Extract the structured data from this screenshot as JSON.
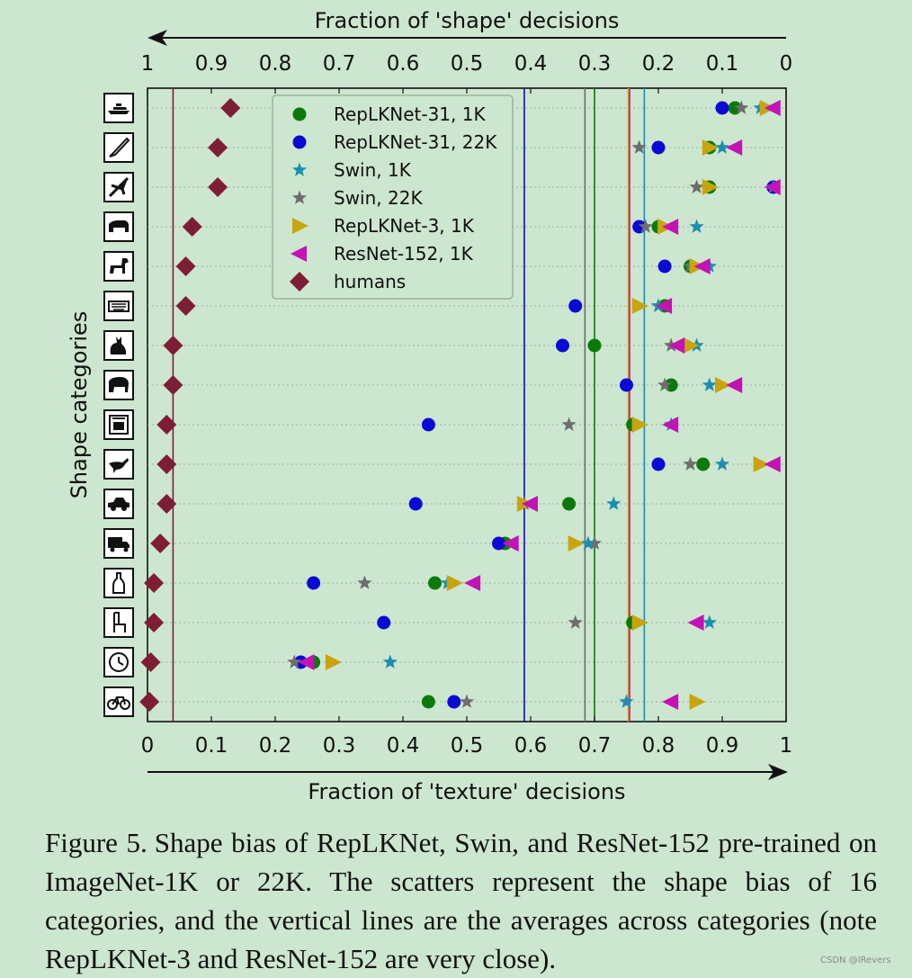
{
  "chart_data": {
    "type": "scatter",
    "top_axis": {
      "label": "Fraction of 'shape' decisions",
      "ticks": [
        "1",
        "0.9",
        "0.8",
        "0.7",
        "0.6",
        "0.5",
        "0.4",
        "0.3",
        "0.2",
        "0.1",
        "0"
      ]
    },
    "bottom_axis": {
      "label": "Fraction of 'texture' decisions",
      "ticks": [
        "0",
        "0.1",
        "0.2",
        "0.3",
        "0.4",
        "0.5",
        "0.6",
        "0.7",
        "0.8",
        "0.9",
        "1"
      ]
    },
    "xlim": [
      0,
      1
    ],
    "ylabel": "Shape categories",
    "categories": [
      "knife",
      "keyboard",
      "airplane",
      "bear",
      "dog",
      "oven",
      "cat",
      "elephant",
      "truck",
      "bird",
      "car",
      "bottle",
      "chair",
      "clock",
      "bicycle",
      "boat"
    ],
    "category_order_top_to_bottom": [
      "boat",
      "knife",
      "airplane",
      "bear",
      "dog",
      "keyboard",
      "cat",
      "elephant",
      "oven",
      "bird",
      "car",
      "truck",
      "bottle",
      "chair",
      "clock",
      "bicycle"
    ],
    "legend_position": "top-left",
    "series": [
      {
        "name": "RepLKNet-31, 1K",
        "color": "#0b7a0b",
        "marker": "circle",
        "values": {
          "boat": 0.92,
          "knife": 0.88,
          "airplane": 0.88,
          "bear": 0.8,
          "dog": 0.85,
          "keyboard": 0.81,
          "cat": 0.7,
          "elephant": 0.82,
          "oven": 0.76,
          "bird": 0.87,
          "car": 0.66,
          "truck": 0.56,
          "bottle": 0.45,
          "chair": 0.76,
          "clock": 0.26,
          "bicycle": 0.44
        }
      },
      {
        "name": "RepLKNet-31, 22K",
        "color": "#0a0ad4",
        "marker": "circle",
        "values": {
          "boat": 0.9,
          "knife": 0.8,
          "airplane": 0.98,
          "bear": 0.77,
          "dog": 0.81,
          "keyboard": 0.67,
          "cat": 0.65,
          "elephant": 0.75,
          "oven": 0.44,
          "bird": 0.8,
          "car": 0.42,
          "truck": 0.55,
          "bottle": 0.26,
          "chair": 0.37,
          "clock": 0.24,
          "bicycle": 0.48
        }
      },
      {
        "name": "Swin, 1K",
        "color": "#1a8fb0",
        "marker": "star",
        "values": {
          "boat": 0.96,
          "knife": 0.9,
          "airplane": 0.98,
          "bear": 0.86,
          "dog": 0.88,
          "keyboard": 0.8,
          "cat": 0.86,
          "elephant": 0.88,
          "oven": 0.82,
          "bird": 0.9,
          "car": 0.73,
          "truck": 0.69,
          "bottle": 0.47,
          "chair": 0.88,
          "clock": 0.38,
          "bicycle": 0.75
        }
      },
      {
        "name": "Swin, 22K",
        "color": "#6d6d6d",
        "marker": "star",
        "values": {
          "boat": 0.93,
          "knife": 0.77,
          "airplane": 0.86,
          "bear": 0.78,
          "dog": 0.85,
          "keyboard": 0.8,
          "cat": 0.82,
          "elephant": 0.81,
          "oven": 0.66,
          "bird": 0.85,
          "car": 0.59,
          "truck": 0.7,
          "bottle": 0.34,
          "chair": 0.67,
          "clock": 0.23,
          "bicycle": 0.5
        }
      },
      {
        "name": "RepLKNet-3, 1K",
        "color": "#c8a40e",
        "marker": "triangle-right",
        "values": {
          "boat": 0.97,
          "knife": 0.88,
          "airplane": 0.88,
          "bear": 0.81,
          "dog": 0.86,
          "keyboard": 0.77,
          "cat": 0.85,
          "elephant": 0.9,
          "oven": 0.77,
          "bird": 0.96,
          "car": 0.59,
          "truck": 0.67,
          "bottle": 0.48,
          "chair": 0.77,
          "clock": 0.29,
          "bicycle": 0.86
        }
      },
      {
        "name": "ResNet-152, 1K",
        "color": "#c412b4",
        "marker": "triangle-left",
        "values": {
          "boat": 0.98,
          "knife": 0.92,
          "airplane": 0.98,
          "bear": 0.82,
          "dog": 0.87,
          "keyboard": 0.81,
          "cat": 0.83,
          "elephant": 0.92,
          "oven": 0.82,
          "bird": 0.98,
          "car": 0.6,
          "truck": 0.57,
          "bottle": 0.51,
          "chair": 0.86,
          "clock": 0.25,
          "bicycle": 0.82
        }
      },
      {
        "name": "humans",
        "color": "#7e1e36",
        "marker": "diamond",
        "values": {
          "boat": 0.13,
          "knife": 0.11,
          "airplane": 0.11,
          "bear": 0.07,
          "dog": 0.06,
          "keyboard": 0.06,
          "cat": 0.04,
          "elephant": 0.04,
          "oven": 0.03,
          "bird": 0.03,
          "car": 0.03,
          "truck": 0.02,
          "bottle": 0.01,
          "chair": 0.01,
          "clock": 0.005,
          "bicycle": 0.003
        }
      }
    ],
    "averages": [
      {
        "series": "humans",
        "value": 0.04,
        "color": "#7e1e36"
      },
      {
        "series": "RepLKNet-31, 22K",
        "value": 0.59,
        "color": "#0a0ad4"
      },
      {
        "series": "Swin, 22K",
        "value": 0.685,
        "color": "#6d6d6d"
      },
      {
        "series": "RepLKNet-31, 1K",
        "value": 0.7,
        "color": "#0b7a0b"
      },
      {
        "series": "RepLKNet-3, 1K",
        "value": 0.753,
        "color": "#c8a40e"
      },
      {
        "series": "ResNet-152, 1K",
        "value": 0.755,
        "color": "#c412b4"
      },
      {
        "series": "Swin, 1K",
        "value": 0.778,
        "color": "#1a8fb0"
      }
    ]
  },
  "caption": {
    "label": "Figure 5.",
    "text": "Shape bias of RepLKNet, Swin, and ResNet-152 pre-trained on ImageNet-1K or 22K. The scatters represent the shape bias of 16 categories, and the vertical lines are the averages across categories (note RepLKNet-3 and ResNet-152 are very close)."
  },
  "watermark": "CSDN @lRevers"
}
